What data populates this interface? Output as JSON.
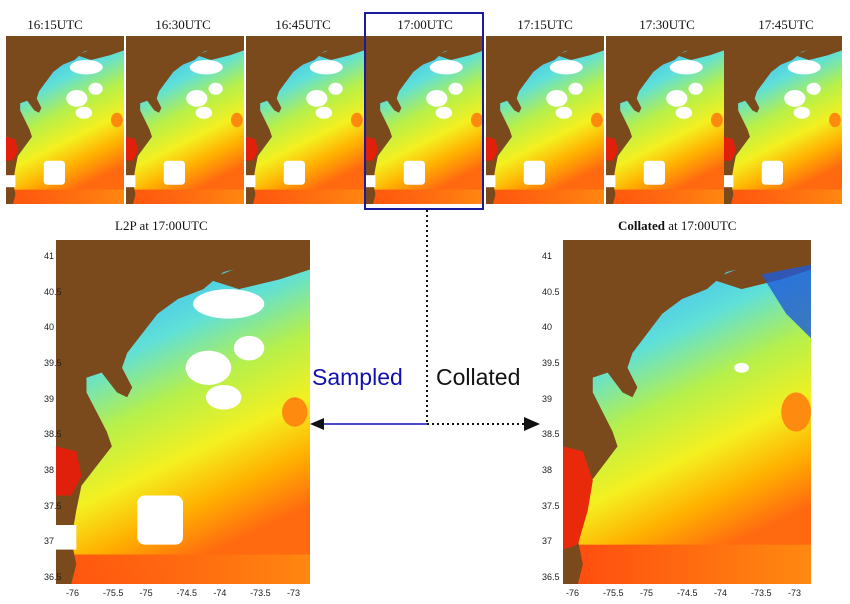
{
  "frames": [
    "16:15UTC",
    "16:30UTC",
    "16:45UTC",
    "17:00UTC",
    "17:15UTC",
    "17:30UTC",
    "17:45UTC"
  ],
  "highlighted_frame_index": 3,
  "panels": {
    "left": {
      "title": "L2P at 17:00UTC"
    },
    "right": {
      "title_bold": "Collated",
      "title_rest": " at 17:00UTC"
    }
  },
  "lat_ticks": [
    "41",
    "40.5",
    "40",
    "39.5",
    "39",
    "38.5",
    "38",
    "37.5",
    "37",
    "36.5"
  ],
  "lon_ticks": [
    "-76",
    "-75.5",
    "-75",
    "-74.5",
    "-74",
    "-73.5",
    "-73"
  ],
  "labels": {
    "sampled": "Sampled",
    "collated": "Collated"
  },
  "colors": {
    "land": "#7a4a1d",
    "highlight": "#1a1a9a",
    "sampled": "#1010b0",
    "collated": "#111111"
  }
}
